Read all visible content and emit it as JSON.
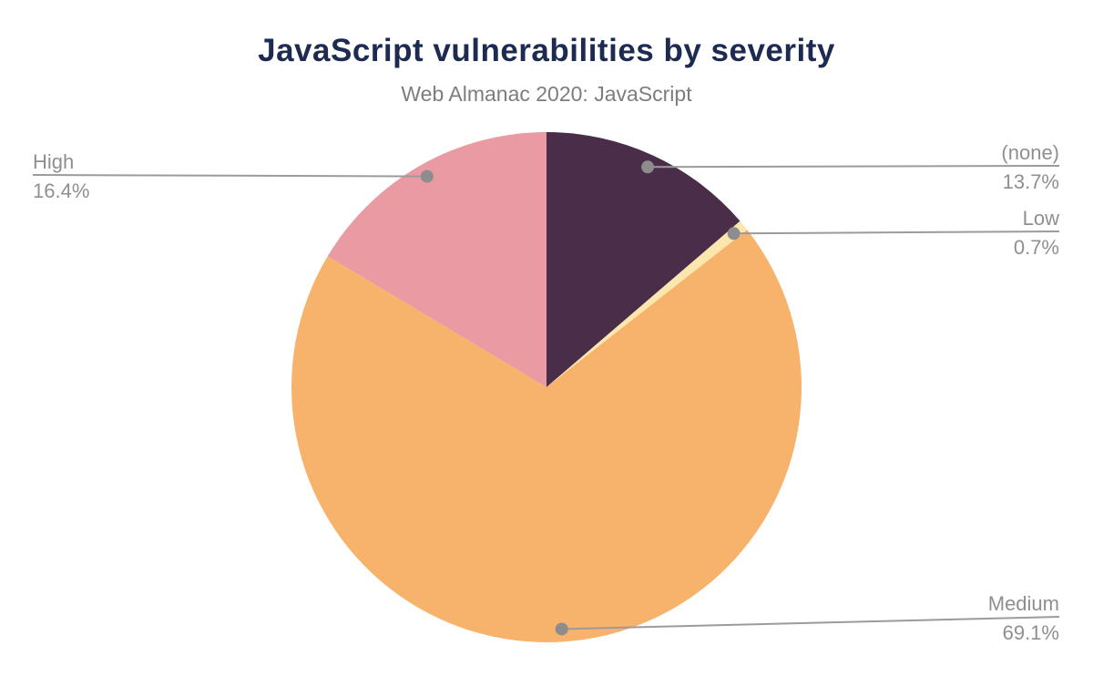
{
  "header": {
    "title": "JavaScript vulnerabilities by severity",
    "subtitle": "Web Almanac 2020: JavaScript",
    "title_color": "#1e2b50",
    "subtitle_color": "#7d7d7d"
  },
  "chart_data": {
    "type": "pie",
    "title": "JavaScript vulnerabilities by severity",
    "subtitle": "Web Almanac 2020: JavaScript",
    "start_angle": 0,
    "direction": "clockwise",
    "legend_position": "callouts",
    "background_color": "#ffffff",
    "leader_line_color": "#9b9b9b",
    "leader_dot_color": "#8d8d8d",
    "label_text_color": "#8f8f8f",
    "slices": [
      {
        "label": "(none)",
        "value": 13.7,
        "display": "13.7%",
        "color": "#4a2e49"
      },
      {
        "label": "Low",
        "value": 0.7,
        "display": "0.7%",
        "color": "#fbe7ad"
      },
      {
        "label": "Medium",
        "value": 69.1,
        "display": "69.1%",
        "color": "#f7b26b"
      },
      {
        "label": "High",
        "value": 16.4,
        "display": "16.4%",
        "color": "#ea9aa2"
      }
    ]
  }
}
